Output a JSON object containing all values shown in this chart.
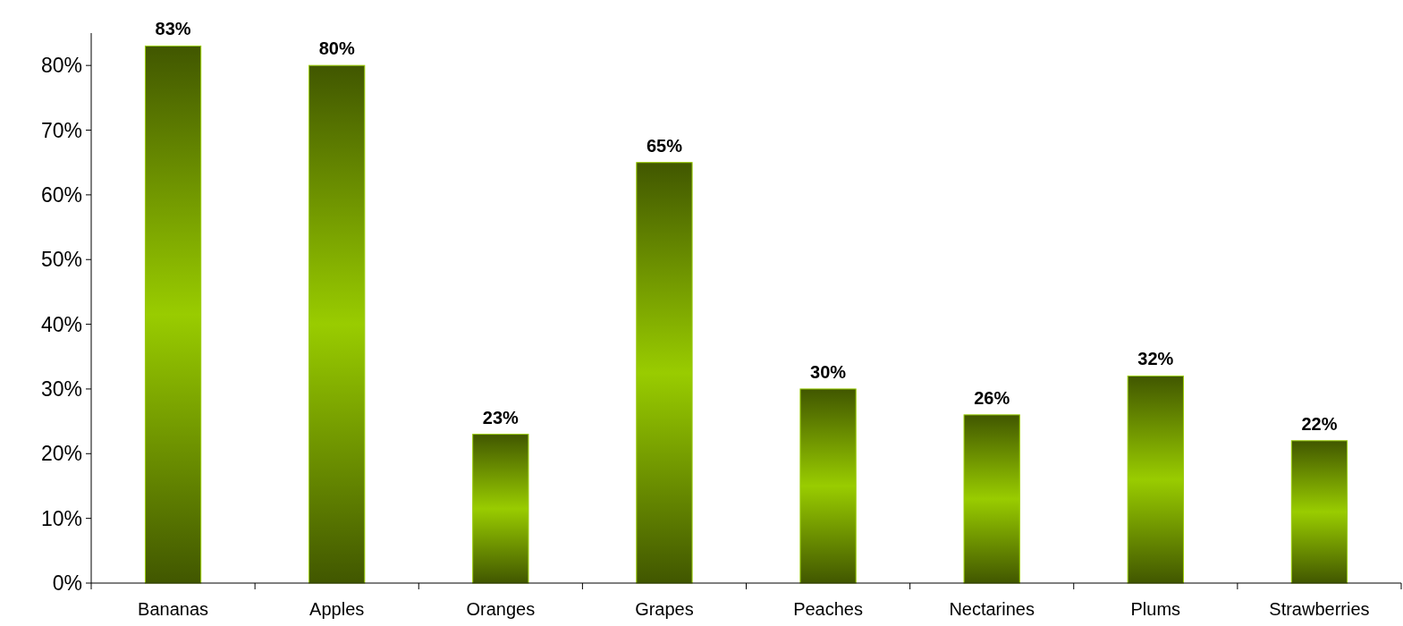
{
  "chart_data": {
    "type": "bar",
    "categories": [
      "Bananas",
      "Apples",
      "Oranges",
      "Grapes",
      "Peaches",
      "Nectarines",
      "Plums",
      "Strawberries"
    ],
    "values": [
      83,
      80,
      23,
      65,
      30,
      26,
      32,
      22
    ],
    "color": "#99cc00",
    "ylim": [
      0,
      85
    ],
    "yticks": [
      {
        "value": 0,
        "label": "0%"
      },
      {
        "value": 10,
        "label": "10%"
      },
      {
        "value": 20,
        "label": "20%"
      },
      {
        "value": 30,
        "label": "30%"
      },
      {
        "value": 40,
        "label": "40%"
      },
      {
        "value": 50,
        "label": "50%"
      },
      {
        "value": 60,
        "label": "60%"
      },
      {
        "value": 70,
        "label": "70%"
      },
      {
        "value": 80,
        "label": "80%"
      }
    ],
    "value_labels": [
      "83%",
      "80%",
      "23%",
      "65%",
      "30%",
      "26%",
      "32%",
      "22%"
    ],
    "grid": false
  }
}
